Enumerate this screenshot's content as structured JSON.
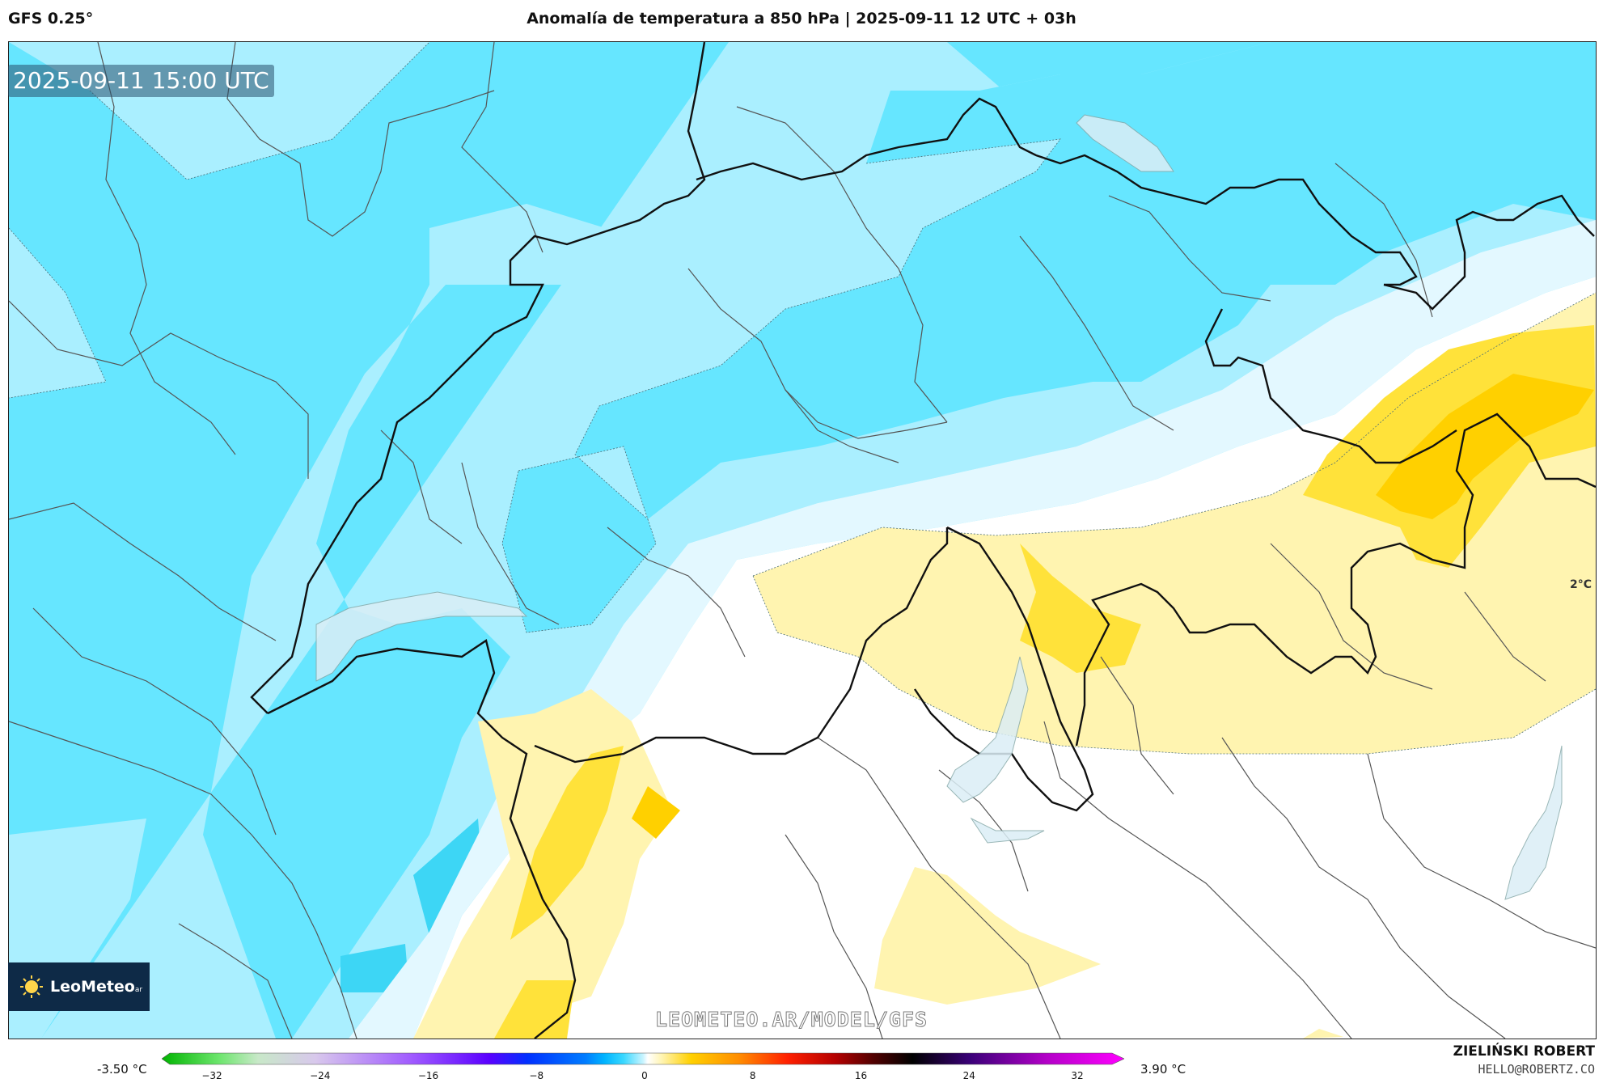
{
  "header": {
    "model": "GFS 0.25°",
    "title": "Anomalía de temperatura a 850 hPa | 2025-09-11 12 UTC + 03h"
  },
  "map": {
    "valid_time": "2025-09-11 15:00 UTC",
    "contour_label": "2°C",
    "watermark": "LEOMETEO.AR/MODEL/GFS",
    "logo_text": "LeoMeteo",
    "logo_suffix": "ar"
  },
  "legend": {
    "min_label": "-3.50 °C",
    "max_label": "3.90 °C",
    "ticks": [
      "−32",
      "−24",
      "−16",
      "−8",
      "0",
      "8",
      "16",
      "24",
      "32"
    ]
  },
  "credits": {
    "author": "ZIELIŃSKI ROBERT",
    "email": "HELLO@ROBERTZ.CO"
  },
  "colors": {
    "cyan": "#66e6ff",
    "light_cyan": "#aaefff",
    "pale_cyan": "#e3f8ff",
    "light_yellow": "#fff4b0",
    "yellow": "#ffe23a",
    "deep_yellow": "#ffd000"
  }
}
